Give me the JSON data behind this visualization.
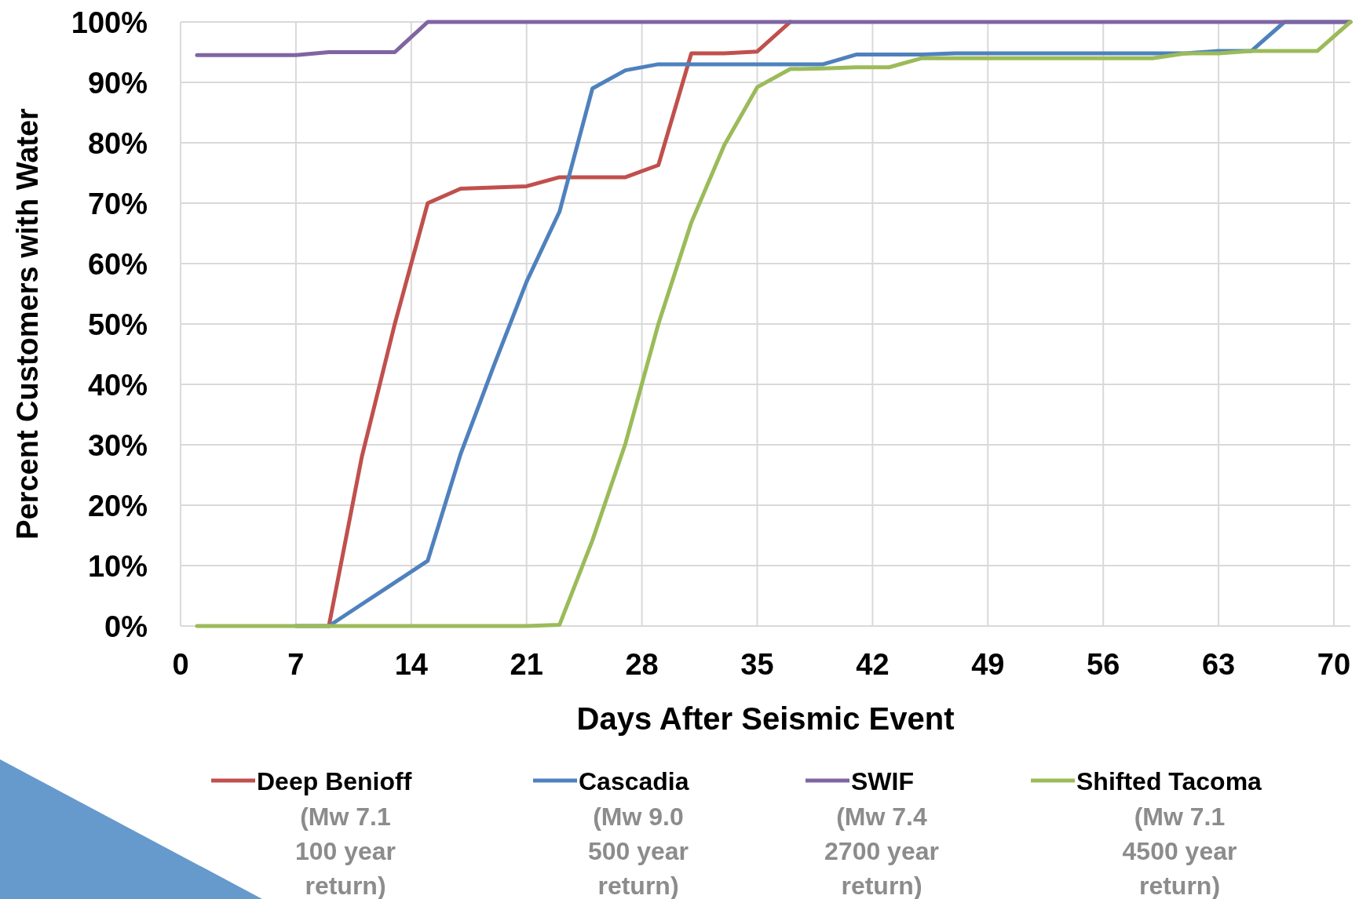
{
  "chart_data": {
    "type": "line",
    "xlabel": "Days After Seismic Event",
    "ylabel": "Percent Customers with Water",
    "x": [
      1,
      3,
      5,
      7,
      9,
      11,
      13,
      15,
      17,
      19,
      21,
      23,
      25,
      27,
      29,
      31,
      33,
      35,
      37,
      39,
      41,
      43,
      45,
      47,
      49,
      51,
      53,
      55,
      57,
      59,
      61,
      63,
      65,
      67,
      69,
      71
    ],
    "series": [
      {
        "name": "Deep Benioff",
        "color": "#c0504d",
        "values": [
          null,
          null,
          null,
          null,
          0,
          28,
          50,
          70,
          72.4,
          72.6,
          72.8,
          74.3,
          74.3,
          74.3,
          76.3,
          94.8,
          94.8,
          95.1,
          100,
          null,
          null,
          null,
          null,
          null,
          null,
          null,
          null,
          null,
          null,
          null,
          null,
          null,
          null,
          null,
          null,
          null
        ]
      },
      {
        "name": "Cascadia",
        "color": "#4f81bd",
        "values": [
          null,
          null,
          null,
          0,
          0,
          3.6,
          7.2,
          10.8,
          28.5,
          43,
          57,
          68.6,
          89,
          92,
          93,
          93,
          93,
          93,
          93,
          93,
          94.6,
          94.6,
          94.6,
          94.8,
          94.8,
          94.8,
          94.8,
          94.8,
          94.8,
          94.8,
          94.8,
          95.2,
          95.2,
          100,
          100,
          100
        ]
      },
      {
        "name": "SWIF",
        "color": "#8064a2",
        "values": [
          94.5,
          94.5,
          94.5,
          94.5,
          95,
          95,
          95,
          100,
          100,
          100,
          100,
          100,
          100,
          100,
          100,
          100,
          100,
          100,
          100,
          100,
          100,
          100,
          100,
          100,
          100,
          100,
          100,
          100,
          100,
          100,
          100,
          100,
          100,
          100,
          100,
          100
        ]
      },
      {
        "name": "Shifted Tacoma",
        "color": "#9bbb59",
        "values": [
          0,
          0,
          0,
          0,
          0,
          0,
          0,
          0,
          0,
          0,
          0,
          0.2,
          14.2,
          30.2,
          50,
          66.8,
          79.6,
          89.2,
          92.2,
          92.3,
          92.5,
          92.5,
          94,
          94,
          94,
          94,
          94,
          94,
          94,
          94,
          94.8,
          94.8,
          95.2,
          95.2,
          95.2,
          100
        ]
      }
    ],
    "annotations": [
      "(Mw 7.1 100 year return)",
      "(Mw 9.0 500 year return)",
      "(Mw 7.4 2700 year return)",
      "(Mw 7.1 4500 year return)"
    ],
    "xlim": [
      0,
      71
    ],
    "xticks": [
      0,
      7,
      14,
      21,
      28,
      35,
      42,
      49,
      56,
      63,
      70
    ],
    "ylim": [
      0,
      100
    ],
    "yticks": [
      {
        "value": 0,
        "label": "0%"
      },
      {
        "value": 10,
        "label": "10%"
      },
      {
        "value": 20,
        "label": "20%"
      },
      {
        "value": 30,
        "label": "30%"
      },
      {
        "value": 40,
        "label": "40%"
      },
      {
        "value": 50,
        "label": "50%"
      },
      {
        "value": 60,
        "label": "60%"
      },
      {
        "value": 70,
        "label": "70%"
      },
      {
        "value": 80,
        "label": "80%"
      },
      {
        "value": 90,
        "label": "90%"
      },
      {
        "value": 100,
        "label": "100%"
      }
    ],
    "grid": true,
    "legend": "bottom",
    "marker": "none",
    "line_style": "solid"
  }
}
